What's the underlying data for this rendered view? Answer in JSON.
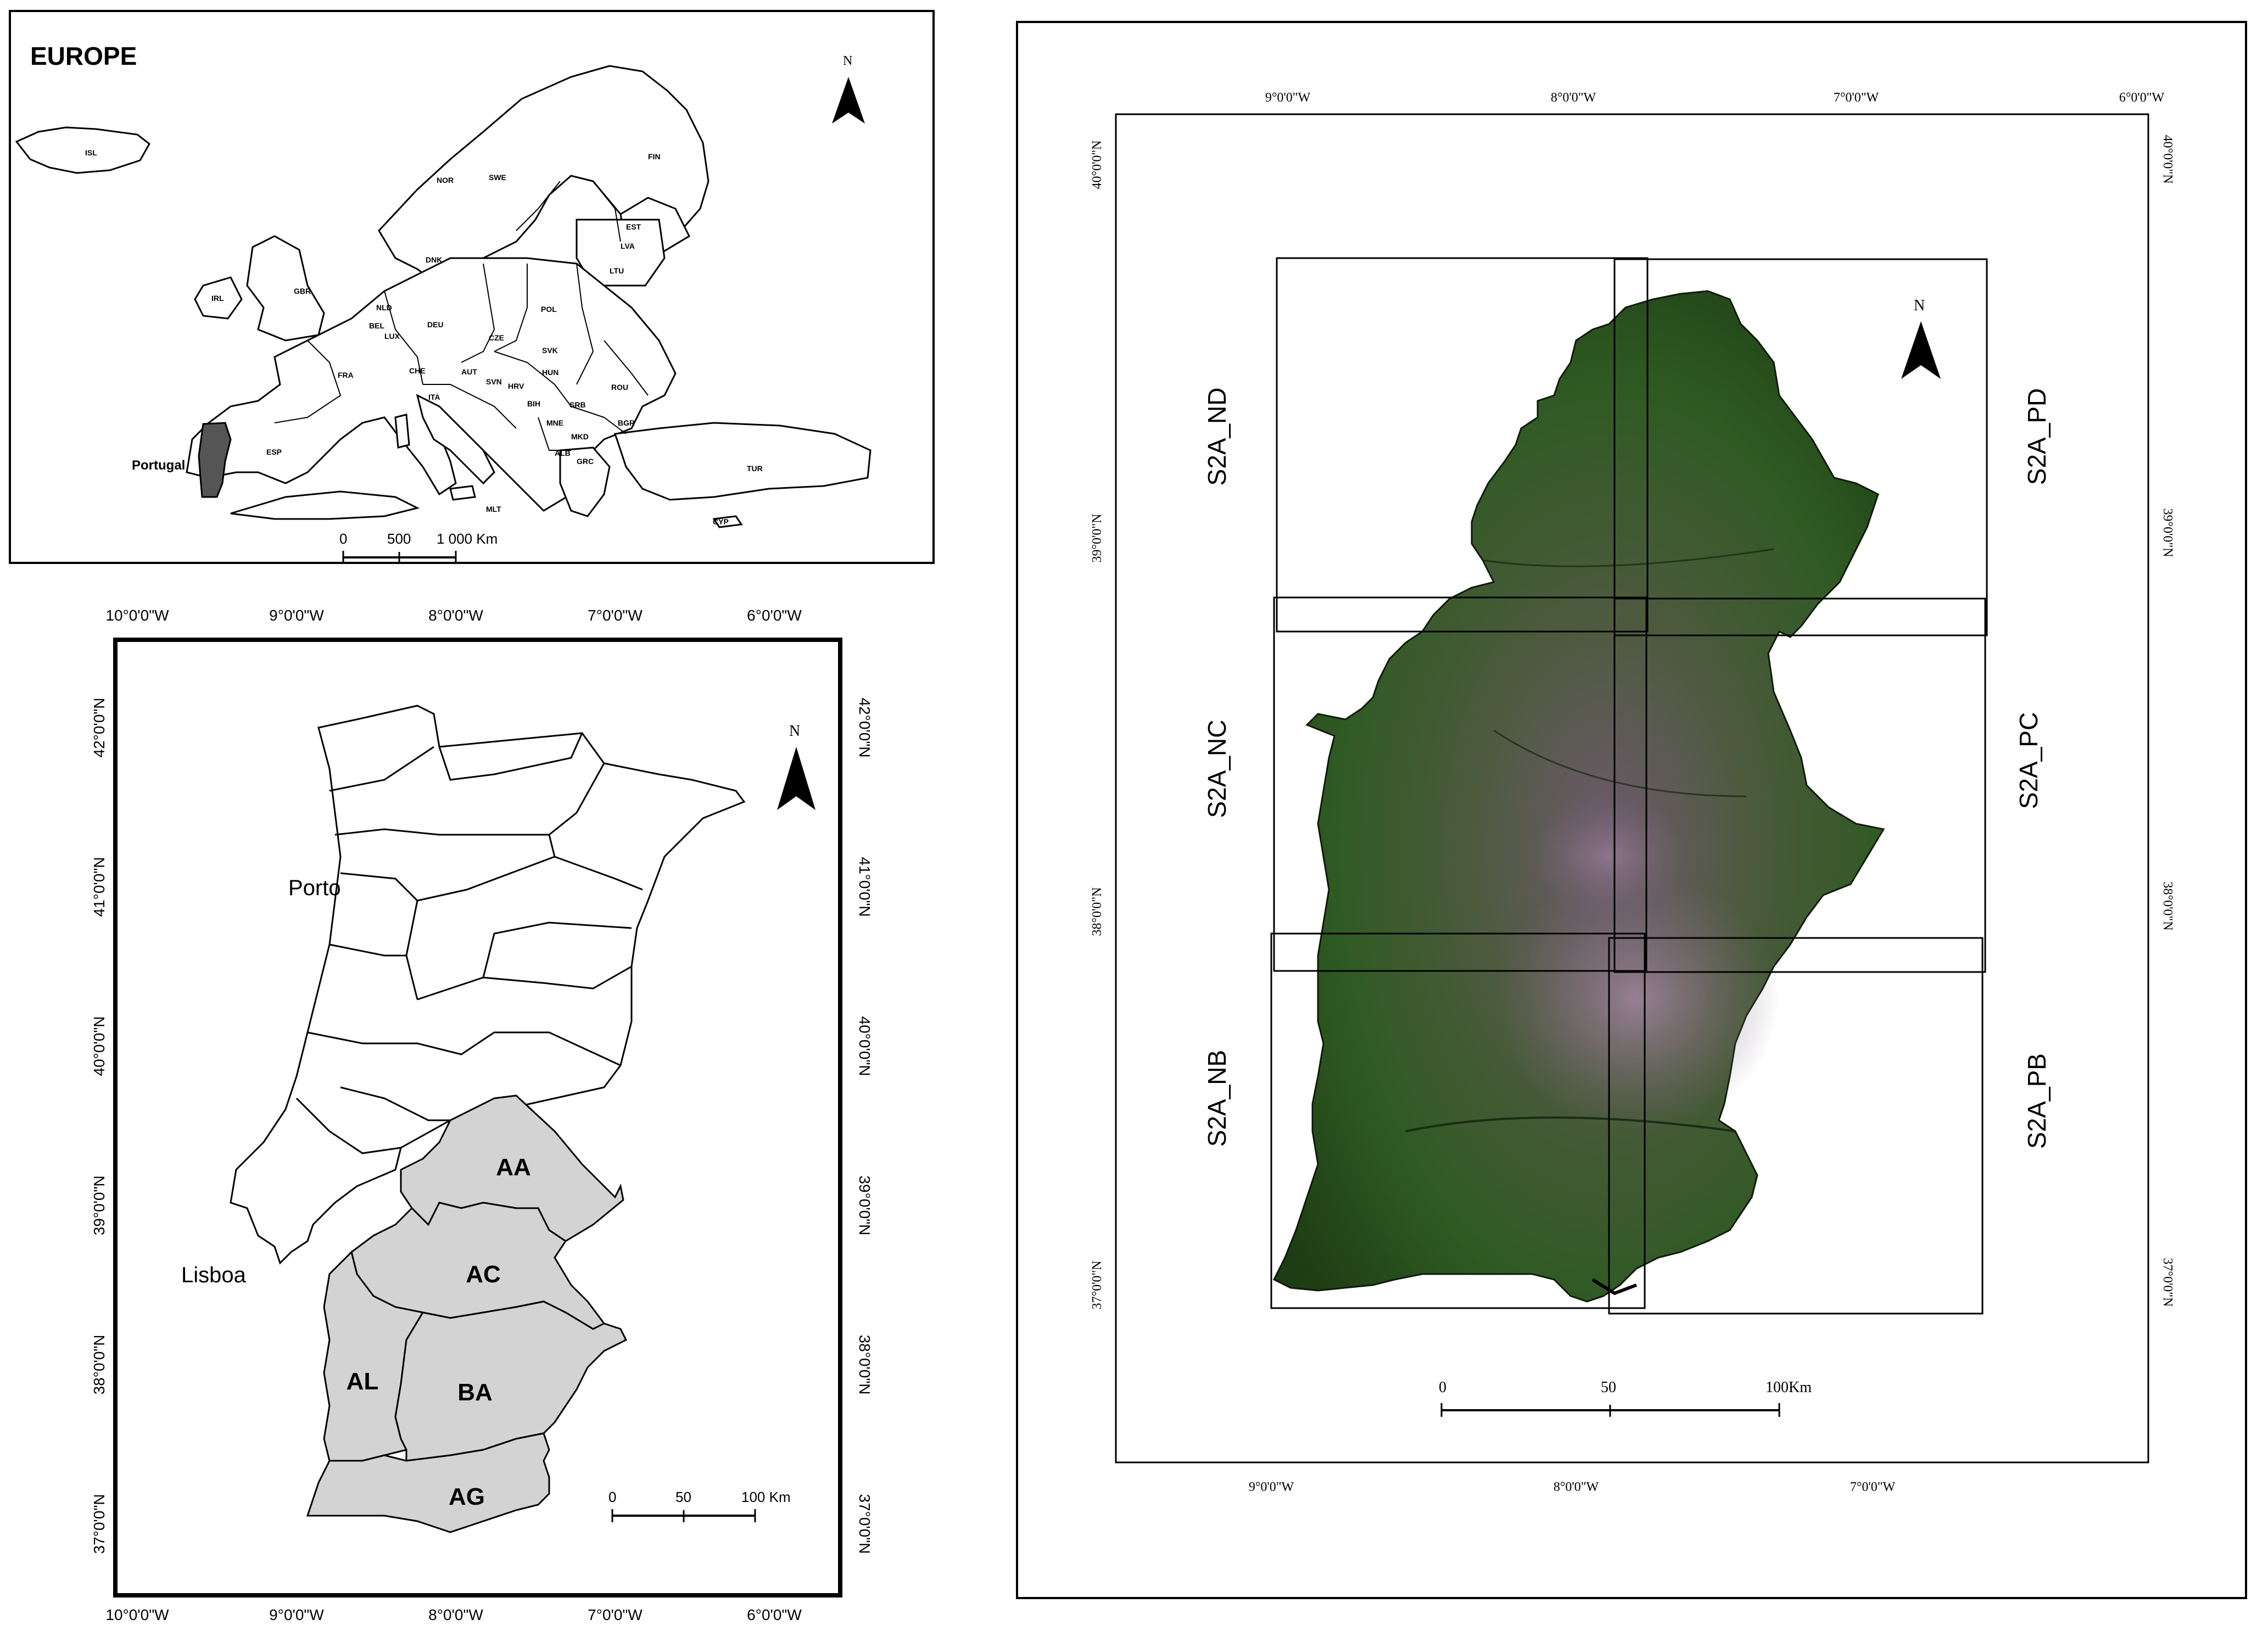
{
  "europe_panel": {
    "title": "EUROPE",
    "highlight_label": "Portugal",
    "north_label": "N",
    "countries": [
      {
        "code": "ISL"
      },
      {
        "code": "NOR"
      },
      {
        "code": "SWE"
      },
      {
        "code": "FIN"
      },
      {
        "code": "EST"
      },
      {
        "code": "LVA"
      },
      {
        "code": "LTU"
      },
      {
        "code": "DNK"
      },
      {
        "code": "GBR"
      },
      {
        "code": "IRL"
      },
      {
        "code": "NLD"
      },
      {
        "code": "BEL"
      },
      {
        "code": "LUX"
      },
      {
        "code": "DEU"
      },
      {
        "code": "POL"
      },
      {
        "code": "CZE"
      },
      {
        "code": "SVK"
      },
      {
        "code": "HUN"
      },
      {
        "code": "ROU"
      },
      {
        "code": "FRA"
      },
      {
        "code": "CHE"
      },
      {
        "code": "AUT"
      },
      {
        "code": "SVN"
      },
      {
        "code": "HRV"
      },
      {
        "code": "BIH"
      },
      {
        "code": "SRB"
      },
      {
        "code": "MNE"
      },
      {
        "code": "MKD"
      },
      {
        "code": "BGR"
      },
      {
        "code": "ALB"
      },
      {
        "code": "GRC"
      },
      {
        "code": "ITA"
      },
      {
        "code": "ESP"
      },
      {
        "code": "TUR"
      },
      {
        "code": "MLT"
      },
      {
        "code": "CYP"
      }
    ],
    "scalebar": {
      "labels": [
        "0",
        "500",
        "1 000 Km"
      ]
    }
  },
  "portugal_panel": {
    "north_label": "N",
    "cities": [
      {
        "name": "Porto"
      },
      {
        "name": "Lisboa"
      }
    ],
    "regions": [
      {
        "code": "AA"
      },
      {
        "code": "AC"
      },
      {
        "code": "AL"
      },
      {
        "code": "BA"
      },
      {
        "code": "AG"
      }
    ],
    "lon_ticks": [
      "10°0'0\"W",
      "9°0'0\"W",
      "8°0'0\"W",
      "7°0'0\"W",
      "6°0'0\"W"
    ],
    "lat_ticks": [
      "42°0'0\"N",
      "41°0'0\"N",
      "40°0'0\"N",
      "39°0'0\"N",
      "38°0'0\"N",
      "37°0'0\"N"
    ],
    "scalebar": {
      "labels": [
        "0",
        "50",
        "100 Km"
      ]
    }
  },
  "sentinel_panel": {
    "north_label": "N",
    "tiles": [
      {
        "name": "S2A_ND"
      },
      {
        "name": "S2A_PD"
      },
      {
        "name": "S2A_NC"
      },
      {
        "name": "S2A_PC"
      },
      {
        "name": "S2A_NB"
      },
      {
        "name": "S2A_PB"
      }
    ],
    "lon_ticks_top": [
      "9°0'0\"W",
      "8°0'0\"W",
      "7°0'0\"W",
      "6°0'0\"W"
    ],
    "lon_ticks_bottom": [
      "9°0'0\"W",
      "8°0'0\"W",
      "7°0'0\"W"
    ],
    "lat_ticks": [
      "40°0'0\"N",
      "39°0'0\"N",
      "38°0'0\"N",
      "37°0'0\"N"
    ],
    "scalebar": {
      "labels": [
        "0",
        "50",
        "100Km"
      ]
    }
  },
  "colors": {
    "highlight_fill": "#555555",
    "region_fill": "#d3d3d3",
    "vegetation_dark": "#1e3d14",
    "vegetation_green": "#3a7a26",
    "bare_pink": "#9b7d96"
  }
}
